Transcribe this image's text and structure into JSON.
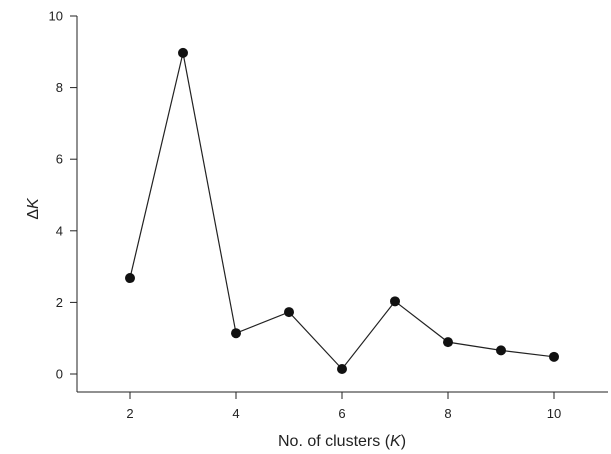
{
  "chart_data": {
    "type": "line",
    "title": "",
    "xlabel": {
      "prefix": "No. of clusters (",
      "italic": "K",
      "suffix": ")"
    },
    "ylabel": {
      "prefix": "Δ",
      "italic": "K"
    },
    "x": [
      2,
      3,
      4,
      5,
      6,
      7,
      8,
      9,
      10
    ],
    "series": [
      {
        "values": [
          2.68,
          8.97,
          1.14,
          1.73,
          0.14,
          2.03,
          0.89,
          0.66,
          0.48
        ]
      }
    ],
    "xlim": [
      1,
      11
    ],
    "ylim": [
      0,
      10
    ],
    "xticks": [
      2,
      4,
      6,
      8,
      10
    ],
    "yticks": [
      0,
      2,
      4,
      6,
      8,
      10
    ],
    "grid": false,
    "line_color": "#222222",
    "marker_color": "#111111"
  }
}
